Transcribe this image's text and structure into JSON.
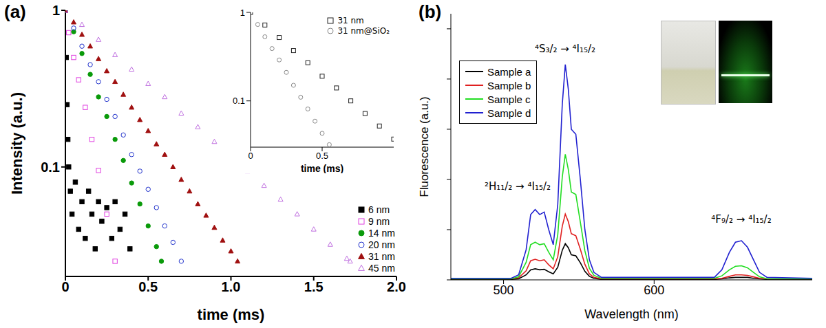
{
  "chart_data": [
    {
      "panel": "(a)",
      "type": "scatter",
      "log": "y",
      "xlabel": "time (ms)",
      "ylabel": "Intensity (a.u.)",
      "xlim": [
        0,
        2
      ],
      "xticks": [
        0,
        0.5,
        {
          "value": 1,
          "label": "1.0"
        },
        1.5,
        {
          "value": 2,
          "label": "2.0"
        }
      ],
      "ylim": [
        0.02,
        1
      ],
      "yticks": [
        0.1,
        1
      ],
      "legend": "lower right",
      "series": [
        {
          "name": "6 nm",
          "color": "#000000",
          "marker": "square",
          "x": [
            0,
            0.005,
            0.01,
            0.015,
            0.02,
            0.03,
            0.04,
            0.06,
            0.08,
            0.1,
            0.12,
            0.14,
            0.16,
            0.18,
            0.2,
            0.22,
            0.25,
            0.28,
            0.3,
            0.33,
            0.36,
            0.39
          ],
          "values": [
            1,
            0.5,
            0.25,
            0.15,
            0.1,
            0.07,
            0.05,
            0.08,
            0.04,
            0.06,
            0.035,
            0.07,
            0.05,
            0.03,
            0.06,
            0.045,
            0.055,
            0.035,
            0.06,
            0.04,
            0.05,
            0.03
          ]
        },
        {
          "name": "9 nm",
          "color": "#e040e0",
          "marker": "open_square",
          "x": [
            0,
            0.02,
            0.05,
            0.08,
            0.12,
            0.16,
            0.2,
            0.25,
            0.3
          ],
          "values": [
            1,
            0.72,
            0.5,
            0.36,
            0.24,
            0.15,
            0.095,
            0.05,
            0.025
          ]
        },
        {
          "name": "14 nm",
          "color": "#0a9a0a",
          "marker": "circle",
          "x": [
            0,
            0.05,
            0.1,
            0.15,
            0.2,
            0.25,
            0.3,
            0.35,
            0.4,
            0.45,
            0.5,
            0.55,
            0.58
          ],
          "values": [
            1,
            0.73,
            0.53,
            0.39,
            0.28,
            0.21,
            0.15,
            0.11,
            0.079,
            0.058,
            0.042,
            0.031,
            0.025
          ]
        },
        {
          "name": "20 nm",
          "color": "#2233cc",
          "marker": "open_circle",
          "x": [
            0,
            0.05,
            0.1,
            0.15,
            0.2,
            0.25,
            0.3,
            0.35,
            0.4,
            0.45,
            0.5,
            0.55,
            0.6,
            0.65,
            0.7
          ],
          "values": [
            1,
            0.77,
            0.59,
            0.45,
            0.35,
            0.27,
            0.21,
            0.16,
            0.12,
            0.094,
            0.072,
            0.055,
            0.042,
            0.033,
            0.025
          ]
        },
        {
          "name": "31 nm",
          "color": "#a01010",
          "marker": "triangle",
          "x": [
            0,
            0.05,
            0.1,
            0.15,
            0.2,
            0.25,
            0.3,
            0.35,
            0.4,
            0.45,
            0.5,
            0.55,
            0.6,
            0.65,
            0.7,
            0.75,
            0.8,
            0.85,
            0.9,
            0.95,
            1.0,
            1.04
          ],
          "values": [
            1,
            0.84,
            0.7,
            0.59,
            0.49,
            0.41,
            0.35,
            0.29,
            0.24,
            0.2,
            0.17,
            0.14,
            0.12,
            0.1,
            0.083,
            0.07,
            0.058,
            0.049,
            0.041,
            0.034,
            0.029,
            0.025
          ]
        },
        {
          "name": "45 nm",
          "color": "#c070e0",
          "marker": "open_triangle",
          "x": [
            0,
            0.1,
            0.2,
            0.3,
            0.4,
            0.5,
            0.6,
            0.7,
            0.8,
            0.9,
            1.0,
            1.1,
            1.2,
            1.3,
            1.4,
            1.5,
            1.6,
            1.7,
            1.72
          ],
          "values": [
            1,
            0.81,
            0.65,
            0.52,
            0.42,
            0.34,
            0.28,
            0.22,
            0.18,
            0.145,
            0.117,
            0.094,
            0.076,
            0.062,
            0.05,
            0.04,
            0.032,
            0.026,
            0.025
          ]
        }
      ],
      "inset": {
        "type": "scatter",
        "log": "y",
        "xlabel": "time (ms)",
        "xlim": [
          0,
          1
        ],
        "xticks": [
          0,
          0.5
        ],
        "ylim": [
          0.03,
          1
        ],
        "yticks": [
          0.1,
          1
        ],
        "legend": "upper right",
        "series": [
          {
            "name": "31 nm",
            "color": "#222222",
            "marker": "open_square",
            "x": [
              0,
              0.1,
              0.2,
              0.3,
              0.4,
              0.5,
              0.6,
              0.7,
              0.8,
              0.9,
              1.0
            ],
            "values": [
              1,
              0.72,
              0.52,
              0.37,
              0.27,
              0.19,
              0.14,
              0.1,
              0.072,
              0.052,
              0.037
            ]
          },
          {
            "name": "31 nm@SiO₂",
            "color": "#888888",
            "marker": "open_circle",
            "x": [
              0,
              0.05,
              0.1,
              0.15,
              0.2,
              0.25,
              0.3,
              0.35,
              0.4,
              0.45,
              0.5,
              0.55
            ],
            "values": [
              1,
              0.73,
              0.53,
              0.39,
              0.29,
              0.21,
              0.15,
              0.11,
              0.081,
              0.059,
              0.043,
              0.032
            ]
          }
        ]
      }
    },
    {
      "panel": "(b)",
      "type": "line",
      "xlabel": "Wavelength (nm)",
      "ylabel": "Fluorescence (a.u.)",
      "x": [
        465,
        505,
        510,
        515,
        518,
        521,
        524,
        527,
        530,
        533,
        536,
        539,
        541,
        543,
        545,
        548,
        551,
        554,
        557,
        560,
        565,
        640,
        645,
        650,
        654,
        658,
        662,
        666,
        670,
        675,
        705
      ],
      "xlim": [
        465,
        705
      ],
      "xticks": [
        500,
        600
      ],
      "ylim": [
        0,
        5.3
      ],
      "yticks": [
        0,
        1,
        2,
        3,
        4,
        5
      ],
      "tick_labels": "x",
      "legend": "upper left",
      "annotations": [
        {
          "text": "²H₁₁/₂ → ⁴I₁₅/₂"
        },
        {
          "text": "⁴S₃/₂ → ⁴I₁₅/₂"
        },
        {
          "text": "⁴F₉/₂ → ⁴I₁₅/₂"
        }
      ],
      "series": [
        {
          "name": "Sample a",
          "color": "#000000",
          "values": [
            0.01,
            0.01,
            0.02,
            0.1,
            0.2,
            0.22,
            0.2,
            0.21,
            0.16,
            0.12,
            0.25,
            0.59,
            0.72,
            0.64,
            0.5,
            0.48,
            0.34,
            0.17,
            0.07,
            0.03,
            0.01,
            0.01,
            0.02,
            0.04,
            0.05,
            0.05,
            0.05,
            0.03,
            0.02,
            0.01,
            0.01
          ]
        },
        {
          "name": "Sample b",
          "color": "#e02020",
          "values": [
            0.02,
            0.02,
            0.04,
            0.18,
            0.38,
            0.41,
            0.38,
            0.4,
            0.3,
            0.22,
            0.46,
            1.07,
            1.31,
            1.16,
            0.92,
            0.88,
            0.61,
            0.31,
            0.12,
            0.05,
            0.02,
            0.02,
            0.03,
            0.07,
            0.1,
            0.1,
            0.09,
            0.06,
            0.03,
            0.02,
            0.02
          ]
        },
        {
          "name": "Sample c",
          "color": "#22dd22",
          "values": [
            0.02,
            0.02,
            0.06,
            0.35,
            0.7,
            0.75,
            0.7,
            0.72,
            0.55,
            0.4,
            0.9,
            2.05,
            2.5,
            2.2,
            1.75,
            1.7,
            1.15,
            0.58,
            0.23,
            0.09,
            0.03,
            0.03,
            0.08,
            0.2,
            0.27,
            0.28,
            0.24,
            0.15,
            0.06,
            0.02,
            0.02
          ]
        },
        {
          "name": "Sample d",
          "color": "#2020d0",
          "values": [
            0.03,
            0.03,
            0.1,
            0.6,
            1.3,
            1.4,
            1.3,
            1.35,
            1.0,
            0.7,
            1.5,
            3.5,
            4.29,
            3.8,
            3.0,
            2.9,
            2.0,
            1.0,
            0.4,
            0.15,
            0.05,
            0.05,
            0.2,
            0.55,
            0.75,
            0.78,
            0.65,
            0.4,
            0.15,
            0.05,
            0.03
          ]
        }
      ]
    }
  ]
}
